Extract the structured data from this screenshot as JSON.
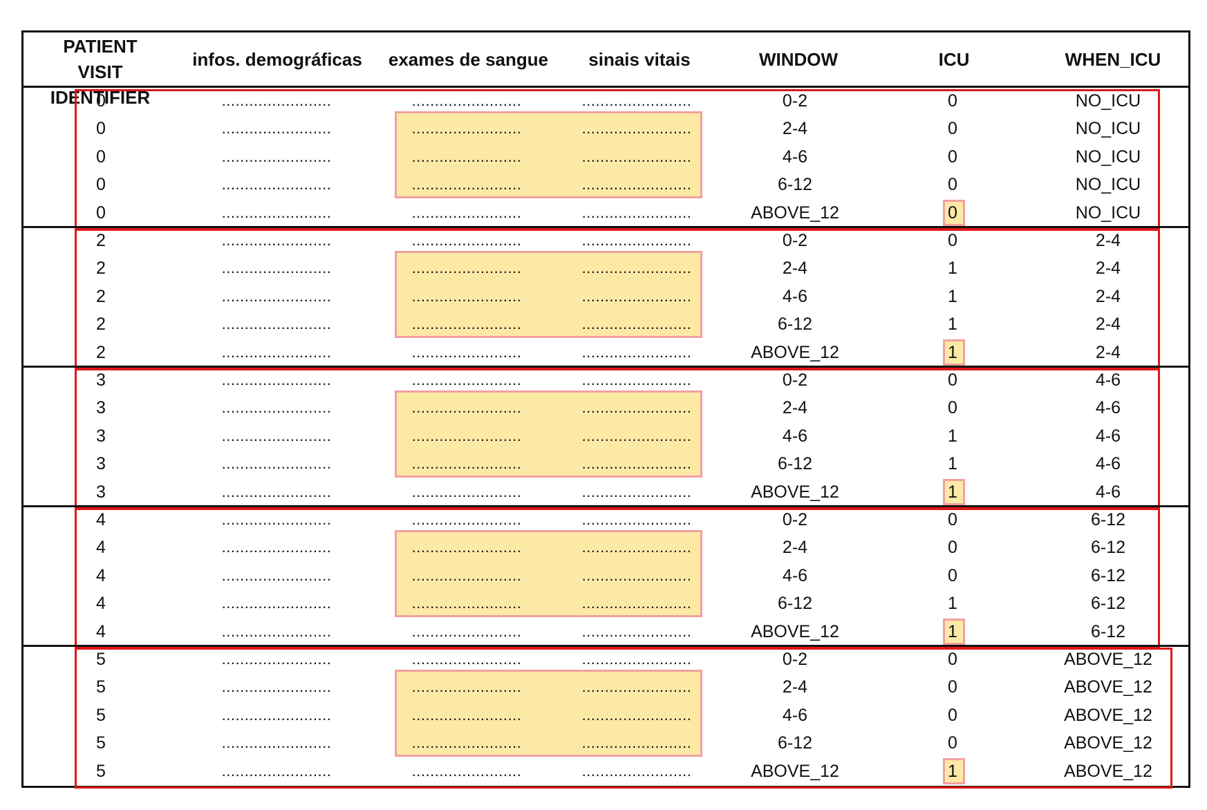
{
  "table": {
    "headers": {
      "patient_visit_identifier": "PATIENT VISIT IDENTIFIER",
      "demographic_info": "infos. demográficas",
      "blood_tests": "exames de sangue",
      "vital_signs": "sinais vitais",
      "window": "WINDOW",
      "icu": "ICU",
      "when_icu": "WHEN_ICU"
    },
    "placeholder": "........................",
    "rows": [
      {
        "id": "0",
        "window": "0-2",
        "icu": "0",
        "when_icu": "NO_ICU"
      },
      {
        "id": "0",
        "window": "2-4",
        "icu": "0",
        "when_icu": "NO_ICU"
      },
      {
        "id": "0",
        "window": "4-6",
        "icu": "0",
        "when_icu": "NO_ICU"
      },
      {
        "id": "0",
        "window": "6-12",
        "icu": "0",
        "when_icu": "NO_ICU"
      },
      {
        "id": "0",
        "window": "ABOVE_12",
        "icu": "0",
        "when_icu": "NO_ICU"
      },
      {
        "id": "2",
        "window": "0-2",
        "icu": "0",
        "when_icu": "2-4"
      },
      {
        "id": "2",
        "window": "2-4",
        "icu": "1",
        "when_icu": "2-4"
      },
      {
        "id": "2",
        "window": "4-6",
        "icu": "1",
        "when_icu": "2-4"
      },
      {
        "id": "2",
        "window": "6-12",
        "icu": "1",
        "when_icu": "2-4"
      },
      {
        "id": "2",
        "window": "ABOVE_12",
        "icu": "1",
        "when_icu": "2-4"
      },
      {
        "id": "3",
        "window": "0-2",
        "icu": "0",
        "when_icu": "4-6"
      },
      {
        "id": "3",
        "window": "2-4",
        "icu": "0",
        "when_icu": "4-6"
      },
      {
        "id": "3",
        "window": "4-6",
        "icu": "1",
        "when_icu": "4-6"
      },
      {
        "id": "3",
        "window": "6-12",
        "icu": "1",
        "when_icu": "4-6"
      },
      {
        "id": "3",
        "window": "ABOVE_12",
        "icu": "1",
        "when_icu": "4-6"
      },
      {
        "id": "4",
        "window": "0-2",
        "icu": "0",
        "when_icu": "6-12"
      },
      {
        "id": "4",
        "window": "2-4",
        "icu": "0",
        "when_icu": "6-12"
      },
      {
        "id": "4",
        "window": "4-6",
        "icu": "0",
        "when_icu": "6-12"
      },
      {
        "id": "4",
        "window": "6-12",
        "icu": "1",
        "when_icu": "6-12"
      },
      {
        "id": "4",
        "window": "ABOVE_12",
        "icu": "1",
        "when_icu": "6-12"
      },
      {
        "id": "5",
        "window": "0-2",
        "icu": "0",
        "when_icu": "ABOVE_12"
      },
      {
        "id": "5",
        "window": "2-4",
        "icu": "0",
        "when_icu": "ABOVE_12"
      },
      {
        "id": "5",
        "window": "4-6",
        "icu": "0",
        "when_icu": "ABOVE_12"
      },
      {
        "id": "5",
        "window": "6-12",
        "icu": "0",
        "when_icu": "ABOVE_12"
      },
      {
        "id": "5",
        "window": "ABOVE_12",
        "icu": "1",
        "when_icu": "ABOVE_12"
      }
    ]
  },
  "colors": {
    "highlight_fill": "#fde9a6",
    "highlight_border": "#f2a0a0",
    "group_box": "#e01818",
    "rule": "#111111"
  }
}
